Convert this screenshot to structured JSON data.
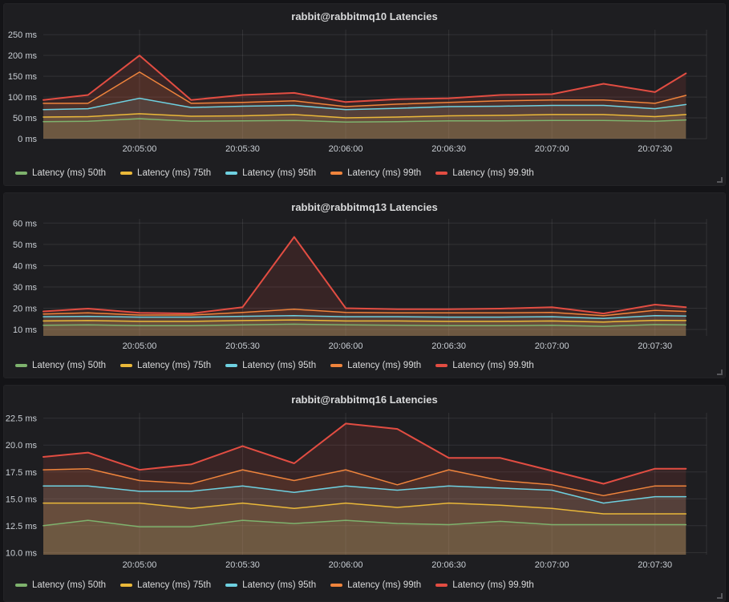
{
  "colors": {
    "page_bg": "#141417",
    "panel_bg": "#1e1e21",
    "grid": "rgba(255,255,255,0.09)",
    "tick_text": "#c9ced4",
    "title_text": "#d8d9da",
    "legend_text": "#d8d9da",
    "series_green": "#7EB26D",
    "series_yellow": "#EAB839",
    "series_cyan": "#6ED0E0",
    "series_orange": "#EF843C",
    "series_red": "#E24D42"
  },
  "chart_data": [
    {
      "type": "area",
      "title": "rabbit@rabbitmq10 Latencies",
      "ylabel": "",
      "xlabel": "",
      "unit": "ms",
      "grid": true,
      "legend_position": "bottom",
      "x_range": [
        "20:04:32",
        "20:07:45"
      ],
      "x_ticks": [
        "20:05:00",
        "20:05:30",
        "20:06:00",
        "20:06:30",
        "20:07:00",
        "20:07:30"
      ],
      "x": [
        "20:04:32",
        "20:04:45",
        "20:05:00",
        "20:05:15",
        "20:05:30",
        "20:05:45",
        "20:06:00",
        "20:06:15",
        "20:06:30",
        "20:06:45",
        "20:07:00",
        "20:07:15",
        "20:07:30",
        "20:07:39"
      ],
      "ylim": [
        0,
        262
      ],
      "y_ticks": [
        0,
        50,
        100,
        150,
        200,
        250
      ],
      "y_tick_labels": [
        "0 ms",
        "50 ms",
        "100 ms",
        "150 ms",
        "200 ms",
        "250 ms"
      ],
      "series": [
        {
          "name": "Latency (ms) 50th",
          "color": "#7EB26D",
          "values": [
            41,
            42,
            48,
            42,
            43,
            44,
            40,
            41,
            43,
            43,
            44,
            44,
            42,
            45
          ]
        },
        {
          "name": "Latency (ms) 75th",
          "color": "#EAB839",
          "values": [
            52,
            53,
            60,
            54,
            55,
            58,
            50,
            52,
            55,
            56,
            58,
            58,
            53,
            58
          ]
        },
        {
          "name": "Latency (ms) 95th",
          "color": "#6ED0E0",
          "values": [
            70,
            72,
            97,
            75,
            78,
            80,
            70,
            73,
            77,
            78,
            80,
            80,
            72,
            82
          ]
        },
        {
          "name": "Latency (ms) 99th",
          "color": "#EF843C",
          "values": [
            85,
            85,
            160,
            85,
            87,
            91,
            77,
            83,
            87,
            91,
            93,
            93,
            85,
            104
          ]
        },
        {
          "name": "Latency (ms) 99.9th",
          "color": "#E24D42",
          "values": [
            93,
            105,
            200,
            93,
            105,
            110,
            88,
            95,
            97,
            105,
            107,
            132,
            112,
            157
          ]
        }
      ]
    },
    {
      "type": "area",
      "title": "rabbit@rabbitmq13 Latencies",
      "ylabel": "",
      "xlabel": "",
      "unit": "ms",
      "grid": true,
      "legend_position": "bottom",
      "x_range": [
        "20:04:32",
        "20:07:45"
      ],
      "x_ticks": [
        "20:05:00",
        "20:05:30",
        "20:06:00",
        "20:06:30",
        "20:07:00",
        "20:07:30"
      ],
      "x": [
        "20:04:32",
        "20:04:45",
        "20:05:00",
        "20:05:15",
        "20:05:30",
        "20:05:45",
        "20:06:00",
        "20:06:15",
        "20:06:30",
        "20:06:45",
        "20:07:00",
        "20:07:15",
        "20:07:30",
        "20:07:39"
      ],
      "ylim": [
        7,
        62
      ],
      "y_ticks": [
        10,
        20,
        30,
        40,
        50,
        60
      ],
      "y_tick_labels": [
        "10 ms",
        "20 ms",
        "30 ms",
        "40 ms",
        "50 ms",
        "60 ms"
      ],
      "series": [
        {
          "name": "Latency (ms) 50th",
          "color": "#7EB26D",
          "values": [
            12.0,
            12.2,
            11.8,
            11.8,
            12.2,
            12.5,
            12.2,
            12.0,
            11.8,
            11.8,
            12.0,
            11.5,
            12.3,
            12.2
          ]
        },
        {
          "name": "Latency (ms) 75th",
          "color": "#EAB839",
          "values": [
            14.0,
            14.2,
            13.8,
            13.8,
            14.2,
            14.5,
            14.0,
            14.0,
            13.8,
            13.8,
            14.0,
            13.5,
            14.3,
            14.2
          ]
        },
        {
          "name": "Latency (ms) 95th",
          "color": "#6ED0E0",
          "values": [
            16.0,
            16.2,
            15.8,
            15.8,
            16.2,
            16.5,
            16.0,
            16.0,
            15.8,
            15.8,
            16.0,
            15.2,
            16.5,
            16.3
          ]
        },
        {
          "name": "Latency (ms) 99th",
          "color": "#EF843C",
          "values": [
            17.3,
            17.8,
            16.8,
            16.8,
            18.0,
            19.5,
            18.0,
            17.8,
            17.8,
            17.8,
            18.0,
            16.5,
            19.0,
            18.5
          ]
        },
        {
          "name": "Latency (ms) 99.9th",
          "color": "#E24D42",
          "values": [
            18.5,
            19.8,
            17.8,
            17.5,
            20.5,
            53.5,
            20.0,
            19.5,
            19.5,
            19.8,
            20.5,
            17.5,
            21.7,
            20.5
          ]
        }
      ]
    },
    {
      "type": "area",
      "title": "rabbit@rabbitmq16 Latencies",
      "ylabel": "",
      "xlabel": "",
      "unit": "ms",
      "grid": true,
      "legend_position": "bottom",
      "x_range": [
        "20:04:32",
        "20:07:45"
      ],
      "x_ticks": [
        "20:05:00",
        "20:05:30",
        "20:06:00",
        "20:06:30",
        "20:07:00",
        "20:07:30"
      ],
      "x": [
        "20:04:32",
        "20:04:45",
        "20:05:00",
        "20:05:15",
        "20:05:30",
        "20:05:45",
        "20:06:00",
        "20:06:15",
        "20:06:30",
        "20:06:45",
        "20:07:00",
        "20:07:15",
        "20:07:30",
        "20:07:39"
      ],
      "ylim": [
        9.8,
        23.0
      ],
      "y_ticks": [
        10.0,
        12.5,
        15.0,
        17.5,
        20.0,
        22.5
      ],
      "y_tick_labels": [
        "10.0 ms",
        "12.5 ms",
        "15.0 ms",
        "17.5 ms",
        "20.0 ms",
        "22.5 ms"
      ],
      "series": [
        {
          "name": "Latency (ms) 50th",
          "color": "#7EB26D",
          "values": [
            12.5,
            13.0,
            12.4,
            12.4,
            13.0,
            12.7,
            13.0,
            12.7,
            12.6,
            12.9,
            12.6,
            12.6,
            12.6,
            12.6
          ]
        },
        {
          "name": "Latency (ms) 75th",
          "color": "#EAB839",
          "values": [
            14.6,
            14.6,
            14.6,
            14.1,
            14.6,
            14.1,
            14.6,
            14.2,
            14.6,
            14.4,
            14.1,
            13.6,
            13.6,
            13.6
          ]
        },
        {
          "name": "Latency (ms) 95th",
          "color": "#6ED0E0",
          "values": [
            16.2,
            16.2,
            15.7,
            15.7,
            16.2,
            15.6,
            16.2,
            15.8,
            16.2,
            16.0,
            15.8,
            14.6,
            15.2,
            15.2
          ]
        },
        {
          "name": "Latency (ms) 99th",
          "color": "#EF843C",
          "values": [
            17.7,
            17.8,
            16.7,
            16.4,
            17.7,
            16.7,
            17.7,
            16.3,
            17.7,
            16.7,
            16.3,
            15.3,
            16.2,
            16.2
          ]
        },
        {
          "name": "Latency (ms) 99.9th",
          "color": "#E24D42",
          "values": [
            18.9,
            19.3,
            17.7,
            18.2,
            19.9,
            18.3,
            22.0,
            21.5,
            18.8,
            18.8,
            17.6,
            16.4,
            17.8,
            17.8
          ]
        }
      ]
    }
  ]
}
